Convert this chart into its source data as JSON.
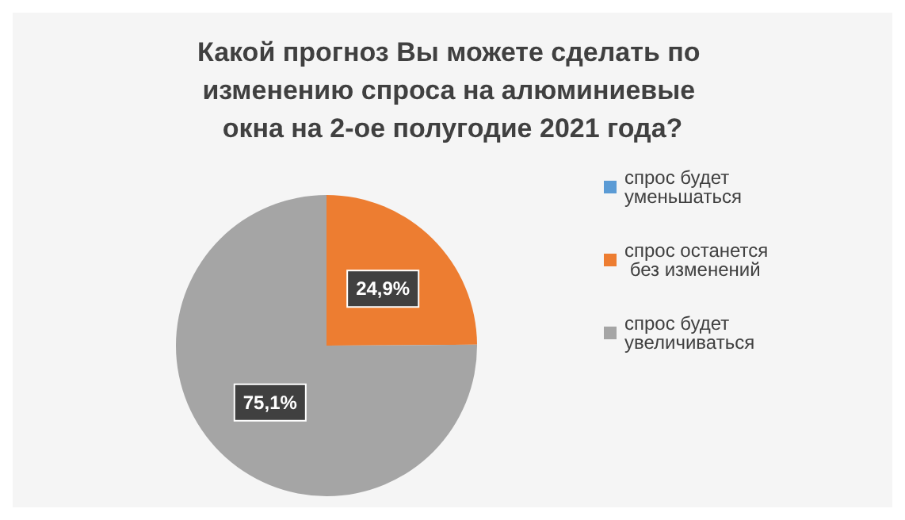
{
  "chart_data": {
    "type": "pie",
    "title": "Какой прогноз Вы можете сделать по изменению спроса на алюминиевые окна на 2-ое полугодие 2021 года?",
    "categories": [
      "спрос будет уменьшаться",
      "спрос останется без изменений",
      "спрос будет увеличиваться"
    ],
    "values": [
      0,
      24.9,
      75.1
    ],
    "colors": [
      "#5b9bd5",
      "#ed7d31",
      "#a5a5a5"
    ],
    "value_labels": [
      null,
      "24,9%",
      "75,1%"
    ],
    "legend": "right"
  }
}
